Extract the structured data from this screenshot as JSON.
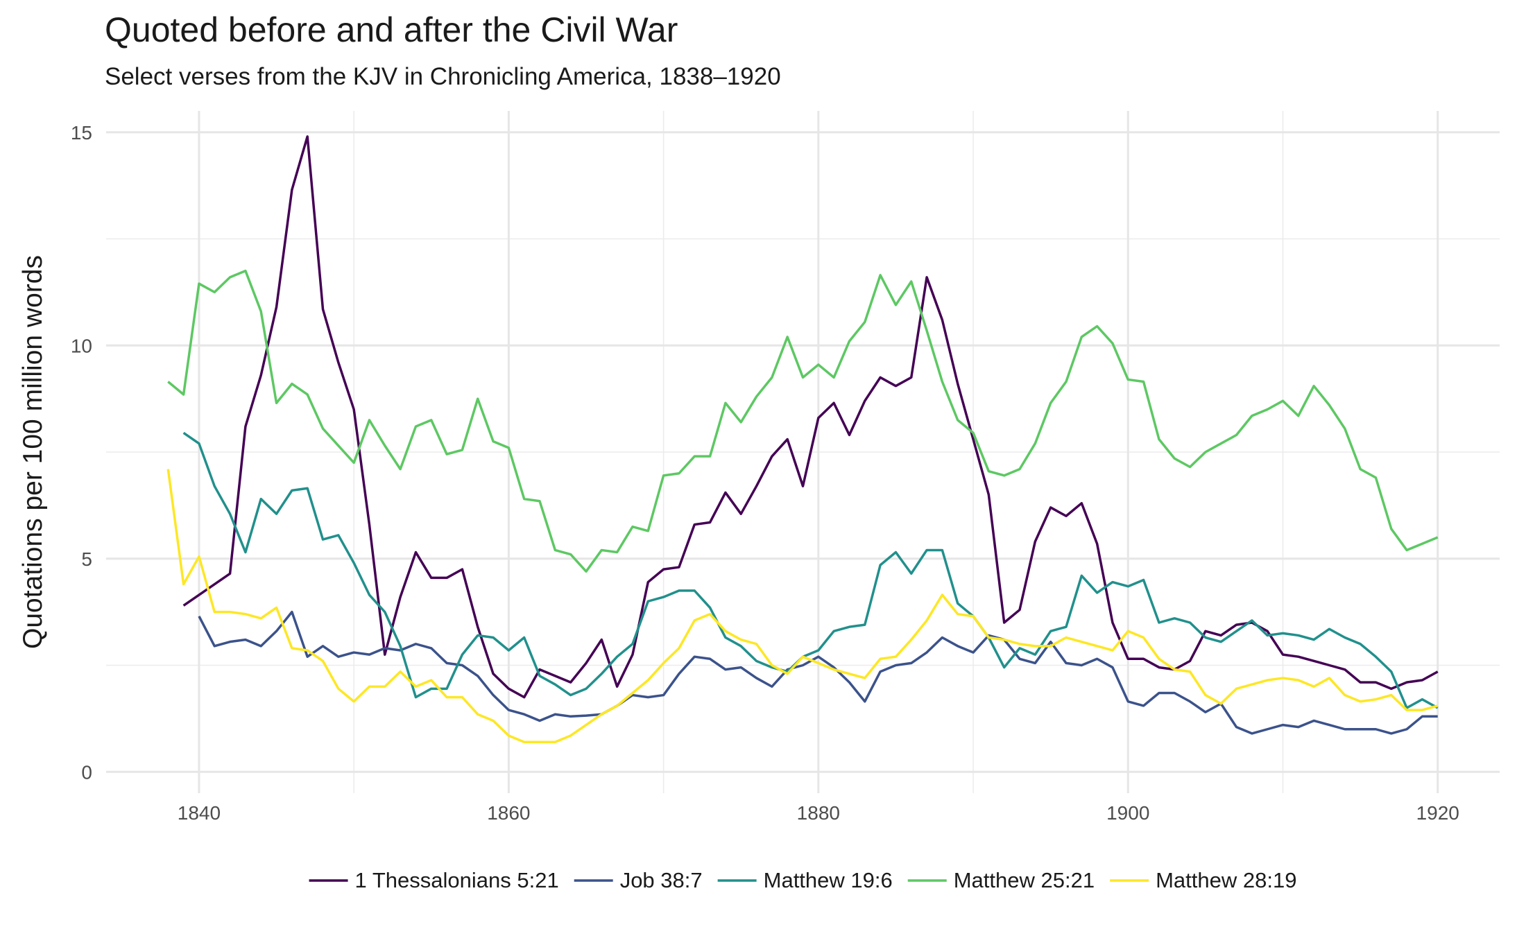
{
  "chart_data": {
    "type": "line",
    "title": "Quoted before and after the Civil War",
    "subtitle": "Select verses from the KJV in Chronicling America, 1838–1920",
    "y_label": "Quotations per 100 million words",
    "x": [
      1838,
      1839,
      1840,
      1841,
      1842,
      1843,
      1844,
      1845,
      1846,
      1847,
      1848,
      1849,
      1850,
      1851,
      1852,
      1853,
      1854,
      1855,
      1856,
      1857,
      1858,
      1859,
      1860,
      1861,
      1862,
      1863,
      1864,
      1865,
      1866,
      1867,
      1868,
      1869,
      1870,
      1871,
      1872,
      1873,
      1874,
      1875,
      1876,
      1877,
      1878,
      1879,
      1880,
      1881,
      1882,
      1883,
      1884,
      1885,
      1886,
      1887,
      1888,
      1889,
      1890,
      1891,
      1892,
      1893,
      1894,
      1895,
      1896,
      1897,
      1898,
      1899,
      1900,
      1901,
      1902,
      1903,
      1904,
      1905,
      1906,
      1907,
      1908,
      1909,
      1910,
      1911,
      1912,
      1913,
      1914,
      1915,
      1916,
      1917,
      1918,
      1919,
      1920
    ],
    "series": [
      {
        "name": "1 Thessalonians 5:21",
        "color": "#440154",
        "values": [
          null,
          3.9,
          4.15,
          4.4,
          4.65,
          8.1,
          9.3,
          10.9,
          13.65,
          14.9,
          10.85,
          9.6,
          8.5,
          5.8,
          2.75,
          4.1,
          5.15,
          4.55,
          4.55,
          4.75,
          3.4,
          2.3,
          1.95,
          1.75,
          2.4,
          2.25,
          2.1,
          2.55,
          3.1,
          2.0,
          2.75,
          4.45,
          4.75,
          4.8,
          5.8,
          5.85,
          6.55,
          6.05,
          6.7,
          7.4,
          7.8,
          6.7,
          8.3,
          8.65,
          7.9,
          8.7,
          9.25,
          9.05,
          9.25,
          11.6,
          10.6,
          9.1,
          7.8,
          6.5,
          3.5,
          3.8,
          5.4,
          6.2,
          6.0,
          6.3,
          5.35,
          3.5,
          2.65,
          2.65,
          2.45,
          2.4,
          2.6,
          3.3,
          3.2,
          3.45,
          3.5,
          3.3,
          2.75,
          2.7,
          2.6,
          2.5,
          2.4,
          2.1,
          2.1,
          1.95,
          2.1,
          2.15,
          2.35
        ]
      },
      {
        "name": "Job 38:7",
        "color": "#3b528b",
        "values": [
          null,
          null,
          3.65,
          2.95,
          3.05,
          3.1,
          2.95,
          3.3,
          3.75,
          2.7,
          2.95,
          2.7,
          2.8,
          2.75,
          2.9,
          2.85,
          3.0,
          2.9,
          2.55,
          2.5,
          2.25,
          1.8,
          1.45,
          1.35,
          1.2,
          1.35,
          1.3,
          1.32,
          1.35,
          1.55,
          1.8,
          1.75,
          1.8,
          2.3,
          2.7,
          2.65,
          2.4,
          2.45,
          2.2,
          2.0,
          2.4,
          2.5,
          2.7,
          2.45,
          2.1,
          1.65,
          2.35,
          2.5,
          2.55,
          2.8,
          3.15,
          2.95,
          2.8,
          3.2,
          3.1,
          2.65,
          2.55,
          3.05,
          2.55,
          2.5,
          2.65,
          2.45,
          1.65,
          1.55,
          1.85,
          1.85,
          1.65,
          1.4,
          1.6,
          1.05,
          0.9,
          1.0,
          1.1,
          1.05,
          1.2,
          1.1,
          1.0,
          1.0,
          1.0,
          0.9,
          1.0,
          1.3,
          1.3
        ]
      },
      {
        "name": "Matthew 19:6",
        "color": "#21908c",
        "values": [
          null,
          7.95,
          7.7,
          6.7,
          6.05,
          5.15,
          6.4,
          6.05,
          6.6,
          6.65,
          5.45,
          5.55,
          4.9,
          4.15,
          3.75,
          2.95,
          1.75,
          1.95,
          1.95,
          2.75,
          3.2,
          3.15,
          2.85,
          3.15,
          2.25,
          2.05,
          1.8,
          1.95,
          2.3,
          2.7,
          3.0,
          4.0,
          4.1,
          4.25,
          4.25,
          3.85,
          3.15,
          2.95,
          2.6,
          2.45,
          2.35,
          2.7,
          2.85,
          3.3,
          3.4,
          3.45,
          4.85,
          5.15,
          4.65,
          5.2,
          5.2,
          3.95,
          3.65,
          3.15,
          2.45,
          2.9,
          2.75,
          3.3,
          3.4,
          4.6,
          4.2,
          4.45,
          4.35,
          4.5,
          3.5,
          3.6,
          3.5,
          3.15,
          3.05,
          3.3,
          3.55,
          3.2,
          3.25,
          3.2,
          3.1,
          3.35,
          3.15,
          3.0,
          2.7,
          2.35,
          1.5,
          1.7,
          1.5
        ]
      },
      {
        "name": "Matthew 25:21",
        "color": "#5dc863",
        "values": [
          9.15,
          8.85,
          11.45,
          11.25,
          11.6,
          11.75,
          10.8,
          8.65,
          9.1,
          8.85,
          8.05,
          7.65,
          7.25,
          8.25,
          7.65,
          7.1,
          8.1,
          8.25,
          7.45,
          7.55,
          8.75,
          7.75,
          7.6,
          6.4,
          6.35,
          5.2,
          5.1,
          4.7,
          5.2,
          5.15,
          5.75,
          5.65,
          6.95,
          7.0,
          7.4,
          7.4,
          8.65,
          8.2,
          8.8,
          9.25,
          10.2,
          9.25,
          9.55,
          9.25,
          10.1,
          10.55,
          11.65,
          10.95,
          11.5,
          10.35,
          9.15,
          8.25,
          7.95,
          7.05,
          6.95,
          7.1,
          7.7,
          8.65,
          9.15,
          10.2,
          10.45,
          10.05,
          9.2,
          9.15,
          7.8,
          7.35,
          7.15,
          7.5,
          7.7,
          7.9,
          8.35,
          8.5,
          8.7,
          8.35,
          9.05,
          8.6,
          8.05,
          7.1,
          6.9,
          5.7,
          5.2,
          5.35,
          5.5
        ]
      },
      {
        "name": "Matthew 28:19",
        "color": "#fde725",
        "values": [
          7.1,
          4.4,
          5.05,
          3.75,
          3.75,
          3.7,
          3.6,
          3.85,
          2.9,
          2.85,
          2.6,
          1.95,
          1.65,
          2.0,
          2.0,
          2.35,
          2.0,
          2.15,
          1.75,
          1.75,
          1.35,
          1.2,
          0.85,
          0.7,
          0.7,
          0.7,
          0.85,
          1.1,
          1.35,
          1.55,
          1.85,
          2.15,
          2.55,
          2.9,
          3.55,
          3.7,
          3.3,
          3.1,
          3.0,
          2.5,
          2.3,
          2.7,
          2.55,
          2.4,
          2.3,
          2.2,
          2.65,
          2.7,
          3.1,
          3.55,
          4.15,
          3.7,
          3.65,
          3.15,
          3.1,
          3.0,
          2.95,
          2.95,
          3.15,
          3.05,
          2.95,
          2.85,
          3.3,
          3.15,
          2.65,
          2.4,
          2.35,
          1.8,
          1.6,
          1.95,
          2.05,
          2.15,
          2.2,
          2.15,
          2.0,
          2.2,
          1.8,
          1.65,
          1.7,
          1.8,
          1.45,
          1.45,
          1.55
        ]
      }
    ],
    "xlim": [
      1834,
      1924
    ],
    "xticks": [
      1840,
      1860,
      1880,
      1900,
      1920
    ],
    "ylim": [
      -0.5,
      15.5
    ],
    "yticks": [
      0,
      5,
      10,
      15
    ],
    "grid": true,
    "legend": "bottom"
  }
}
